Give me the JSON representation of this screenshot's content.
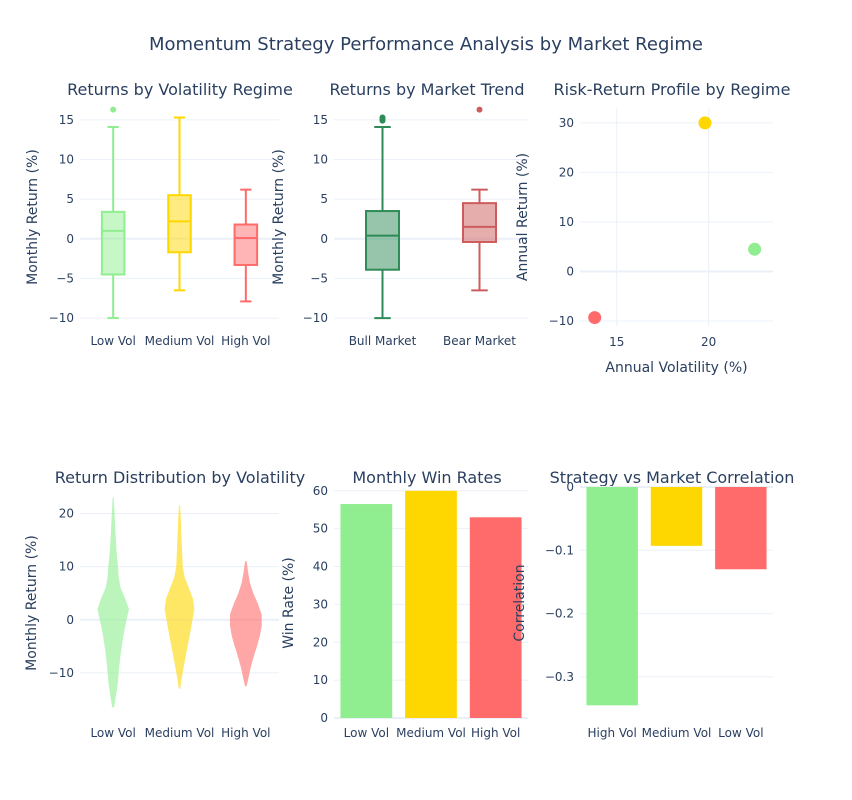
{
  "main_title": "Momentum Strategy Performance Analysis by Market Regime",
  "colors": {
    "green": "#90ee90",
    "gold": "#ffd700",
    "red": "#ff6b6b",
    "dark_green": "#2e8b57",
    "dark_red": "#cd5c5c",
    "text": "#2a3f5f"
  },
  "chart_data": [
    {
      "id": "p1",
      "type": "box",
      "title": "Returns by Volatility Regime",
      "xlabel": "",
      "ylabel": "Monthly Return (%)",
      "ylim": [
        -11,
        16.5
      ],
      "yticks": [
        -10,
        -5,
        0,
        5,
        10,
        15
      ],
      "ytick_labels": [
        "−10",
        "−5",
        "0",
        "5",
        "10",
        "15"
      ],
      "categories": [
        "Low Vol",
        "Medium Vol",
        "High Vol"
      ],
      "boxes": [
        {
          "name": "Low Vol",
          "min": -10,
          "q1": -4.5,
          "median": 1,
          "q3": 3.4,
          "max": 14.1,
          "outliers": [
            16.3
          ],
          "color": "#90ee90"
        },
        {
          "name": "Medium Vol",
          "min": -6.5,
          "q1": -1.7,
          "median": 2.2,
          "q3": 5.5,
          "max": 15.3,
          "outliers": [],
          "color": "#ffd700"
        },
        {
          "name": "High Vol",
          "min": -7.9,
          "q1": -3.3,
          "median": 0.1,
          "q3": 1.8,
          "max": 6.2,
          "outliers": [],
          "color": "#ff6b6b"
        }
      ]
    },
    {
      "id": "p2",
      "type": "box",
      "title": "Returns by Market Trend",
      "xlabel": "",
      "ylabel": "Monthly Return (%)",
      "ylim": [
        -11,
        16.5
      ],
      "yticks": [
        -10,
        -5,
        0,
        5,
        10,
        15
      ],
      "ytick_labels": [
        "−10",
        "−5",
        "0",
        "5",
        "10",
        "15"
      ],
      "categories": [
        "Bull Market",
        "Bear Market"
      ],
      "boxes": [
        {
          "name": "Bull Market",
          "min": -10,
          "q1": -3.9,
          "median": 0.4,
          "q3": 3.5,
          "max": 14.1,
          "outliers": [
            14.9,
            15.1,
            15.3
          ],
          "color": "#2e8b57"
        },
        {
          "name": "Bear Market",
          "min": -6.5,
          "q1": -0.4,
          "median": 1.5,
          "q3": 4.5,
          "max": 6.2,
          "outliers": [
            16.3
          ],
          "color": "#cd5c5c"
        }
      ]
    },
    {
      "id": "p3",
      "type": "scatter",
      "title": "Risk-Return Profile by Regime",
      "xlabel": "Annual Volatility (%)",
      "ylabel": "Annual Return (%)",
      "xlim": [
        13,
        23.5
      ],
      "ylim": [
        -11,
        33
      ],
      "xticks": [
        15,
        20
      ],
      "xtick_labels": [
        "15",
        "20"
      ],
      "yticks": [
        -10,
        0,
        10,
        20,
        30
      ],
      "ytick_labels": [
        "−10",
        "0",
        "10",
        "20",
        "30"
      ],
      "points": [
        {
          "x": 13.8,
          "y": -9.3,
          "color": "#ff6b6b"
        },
        {
          "x": 19.8,
          "y": 30.0,
          "color": "#ffd700"
        },
        {
          "x": 22.5,
          "y": 4.5,
          "color": "#90ee90"
        }
      ]
    },
    {
      "id": "p4",
      "type": "violin",
      "title": "Return Distribution by Volatility",
      "xlabel": "",
      "ylabel": "Monthly Return (%)",
      "ylim": [
        -18.5,
        25
      ],
      "yticks": [
        -10,
        0,
        10,
        20
      ],
      "ytick_labels": [
        "−10",
        "0",
        "10",
        "20"
      ],
      "categories": [
        "Low Vol",
        "Medium Vol",
        "High Vol"
      ],
      "violins": [
        {
          "name": "Low Vol",
          "color": "#90ee90",
          "profile": [
            [
              -16.5,
              0.05
            ],
            [
              -15,
              0.12
            ],
            [
              -12,
              0.25
            ],
            [
              -9,
              0.32
            ],
            [
              -6,
              0.42
            ],
            [
              -3,
              0.55
            ],
            [
              0,
              0.72
            ],
            [
              2,
              0.85
            ],
            [
              4,
              0.65
            ],
            [
              6,
              0.4
            ],
            [
              8,
              0.3
            ],
            [
              10,
              0.26
            ],
            [
              13,
              0.18
            ],
            [
              16,
              0.13
            ],
            [
              19,
              0.09
            ],
            [
              21,
              0.06
            ],
            [
              23,
              0.03
            ]
          ]
        },
        {
          "name": "Medium Vol",
          "color": "#ffd700",
          "profile": [
            [
              -13,
              0.04
            ],
            [
              -11,
              0.12
            ],
            [
              -9,
              0.22
            ],
            [
              -6,
              0.38
            ],
            [
              -3,
              0.55
            ],
            [
              0,
              0.7
            ],
            [
              2,
              0.8
            ],
            [
              4,
              0.72
            ],
            [
              6,
              0.5
            ],
            [
              8,
              0.28
            ],
            [
              10,
              0.18
            ],
            [
              13,
              0.14
            ],
            [
              16,
              0.1
            ],
            [
              19,
              0.07
            ],
            [
              21.5,
              0.03
            ]
          ]
        },
        {
          "name": "High Vol",
          "color": "#ff6b6b",
          "profile": [
            [
              -12.5,
              0.04
            ],
            [
              -11,
              0.14
            ],
            [
              -9,
              0.26
            ],
            [
              -7,
              0.42
            ],
            [
              -5,
              0.6
            ],
            [
              -3,
              0.76
            ],
            [
              -1,
              0.86
            ],
            [
              1,
              0.85
            ],
            [
              3,
              0.65
            ],
            [
              5,
              0.4
            ],
            [
              7,
              0.22
            ],
            [
              9,
              0.12
            ],
            [
              11,
              0.04
            ]
          ]
        }
      ]
    },
    {
      "id": "p5",
      "type": "bar",
      "title": "Monthly Win Rates",
      "xlabel": "",
      "ylabel": "Win Rate (%)",
      "ylim": [
        0,
        61
      ],
      "yticks": [
        0,
        10,
        20,
        30,
        40,
        50,
        60
      ],
      "ytick_labels": [
        "0",
        "10",
        "20",
        "30",
        "40",
        "50",
        "60"
      ],
      "categories": [
        "Low Vol",
        "Medium Vol",
        "High Vol"
      ],
      "values": [
        56.5,
        60.0,
        53.0
      ],
      "colors": [
        "#90ee90",
        "#ffd700",
        "#ff6b6b"
      ]
    },
    {
      "id": "p6",
      "type": "bar",
      "title": "Strategy vs Market Correlation",
      "xlabel": "",
      "ylabel": "Correlation",
      "ylim": [
        -0.365,
        0
      ],
      "yticks": [
        -0.3,
        -0.2,
        -0.1,
        0
      ],
      "ytick_labels": [
        "−0.3",
        "−0.2",
        "−0.1",
        "0"
      ],
      "categories": [
        "High Vol",
        "Medium Vol",
        "Low Vol"
      ],
      "values": [
        -0.345,
        -0.093,
        -0.13
      ],
      "colors": [
        "#90ee90",
        "#ffd700",
        "#ff6b6b"
      ]
    }
  ]
}
